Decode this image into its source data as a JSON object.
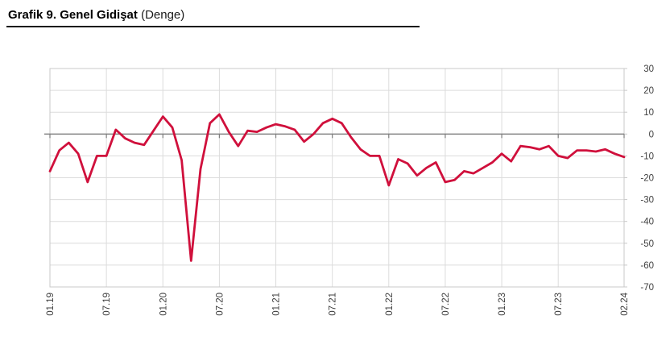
{
  "header": {
    "title_bold": "Grafik 9. Genel Gidişat",
    "title_normal": " (Denge)"
  },
  "chart_data": {
    "type": "line",
    "title": "Genel Gidişat (Denge)",
    "x": [
      "01.19",
      "02.19",
      "03.19",
      "04.19",
      "05.19",
      "06.19",
      "07.19",
      "08.19",
      "09.19",
      "10.19",
      "11.19",
      "12.19",
      "01.20",
      "02.20",
      "03.20",
      "04.20",
      "05.20",
      "06.20",
      "07.20",
      "08.20",
      "09.20",
      "10.20",
      "11.20",
      "12.20",
      "01.21",
      "02.21",
      "03.21",
      "04.21",
      "05.21",
      "06.21",
      "07.21",
      "08.21",
      "09.21",
      "10.21",
      "11.21",
      "12.21",
      "01.22",
      "02.22",
      "03.22",
      "04.22",
      "05.22",
      "06.22",
      "07.22",
      "08.22",
      "09.22",
      "10.22",
      "11.22",
      "12.22",
      "01.23",
      "02.23",
      "03.23",
      "04.23",
      "05.23",
      "06.23",
      "07.23",
      "08.23",
      "09.23",
      "10.23",
      "11.23",
      "12.23",
      "01.24",
      "02.24"
    ],
    "values": [
      -17,
      -7.5,
      -4,
      -9,
      -22,
      -10,
      -10,
      2,
      -2,
      -4,
      -5,
      1.5,
      8,
      3,
      -12,
      -58,
      -16,
      5,
      9,
      1,
      -5.5,
      1.5,
      1,
      3,
      4.5,
      3.5,
      2,
      -3.5,
      0,
      5,
      7,
      5,
      -1.5,
      -7,
      -10,
      -10,
      -23.5,
      -11.5,
      -13.5,
      -19,
      -15.5,
      -13,
      -22,
      -21,
      -17,
      -18,
      -15.5,
      -13,
      -9,
      -12.5,
      -5.5,
      -6,
      -7,
      -5.5,
      -10,
      -11,
      -7.5,
      -7.5,
      -8,
      -7,
      -9,
      -10.5
    ],
    "x_tick_labels": [
      "01.19",
      "07.19",
      "01.20",
      "07.20",
      "01.21",
      "07.21",
      "01.22",
      "07.22",
      "01.23",
      "07.23",
      "02.24"
    ],
    "x_tick_indices": [
      0,
      6,
      12,
      18,
      24,
      30,
      36,
      42,
      48,
      54,
      61
    ],
    "y_tick_labels": [
      "30",
      "20",
      "10",
      "0",
      "-10",
      "-20",
      "-30",
      "-40",
      "-50",
      "-60",
      "-70"
    ],
    "y_tick_values": [
      30,
      20,
      10,
      0,
      -10,
      -20,
      -30,
      -40,
      -50,
      -60,
      -70
    ],
    "ylim": [
      -70,
      30
    ],
    "grid": true,
    "legend": "none",
    "line_color": "#d0103c",
    "grid_color": "#dcdcdc",
    "border_color": "#c8c8c8",
    "zero_line_color": "#7f7f7f",
    "label_color": "#3f3f3f"
  }
}
